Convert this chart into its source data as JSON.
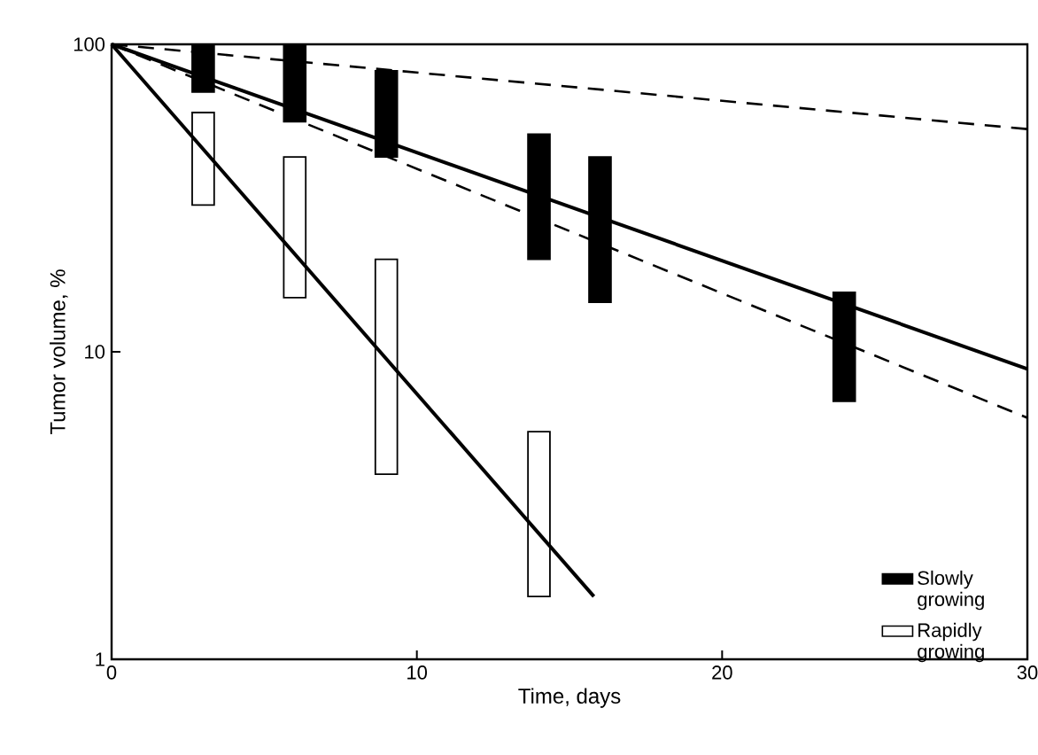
{
  "chart_data": {
    "type": "line",
    "xlabel": "Time,  days",
    "ylabel": "Tumor volume,  %",
    "log": "y",
    "xlim": [
      0,
      30
    ],
    "ylim": [
      1,
      100
    ],
    "xticks": [
      0,
      10,
      20,
      30
    ],
    "yticks": [
      1,
      10,
      100
    ],
    "legend": "bottom right",
    "series": [
      {
        "name": "Slowly growing",
        "type": "bar",
        "color": "#000000",
        "x": [
          3,
          6,
          9,
          14,
          16,
          24
        ],
        "base": [
          70,
          56,
          43,
          20,
          14.5,
          6.9
        ],
        "values": [
          30,
          44,
          39,
          31,
          28.5,
          8.7
        ]
      },
      {
        "name": "Rapidly growing",
        "type": "bar",
        "color": "#ffffff",
        "x": [
          3,
          6,
          9,
          14
        ],
        "base": [
          30,
          15,
          4,
          1.6
        ],
        "values": [
          30,
          28,
          16,
          3.9
        ]
      },
      {
        "color": "#000000",
        "line_style": "solid",
        "x": [
          0,
          30
        ],
        "values": [
          100,
          8.8
        ]
      },
      {
        "color": "#000000",
        "line_style": "solid",
        "x": [
          0,
          15.8
        ],
        "values": [
          100,
          1.6
        ]
      },
      {
        "color": "#000000",
        "line_style": "dashed",
        "x": [
          0,
          30
        ],
        "values": [
          100,
          53
        ]
      },
      {
        "color": "#000000",
        "line_style": "dashed",
        "x": [
          0,
          30
        ],
        "values": [
          100,
          6.1
        ]
      }
    ]
  }
}
